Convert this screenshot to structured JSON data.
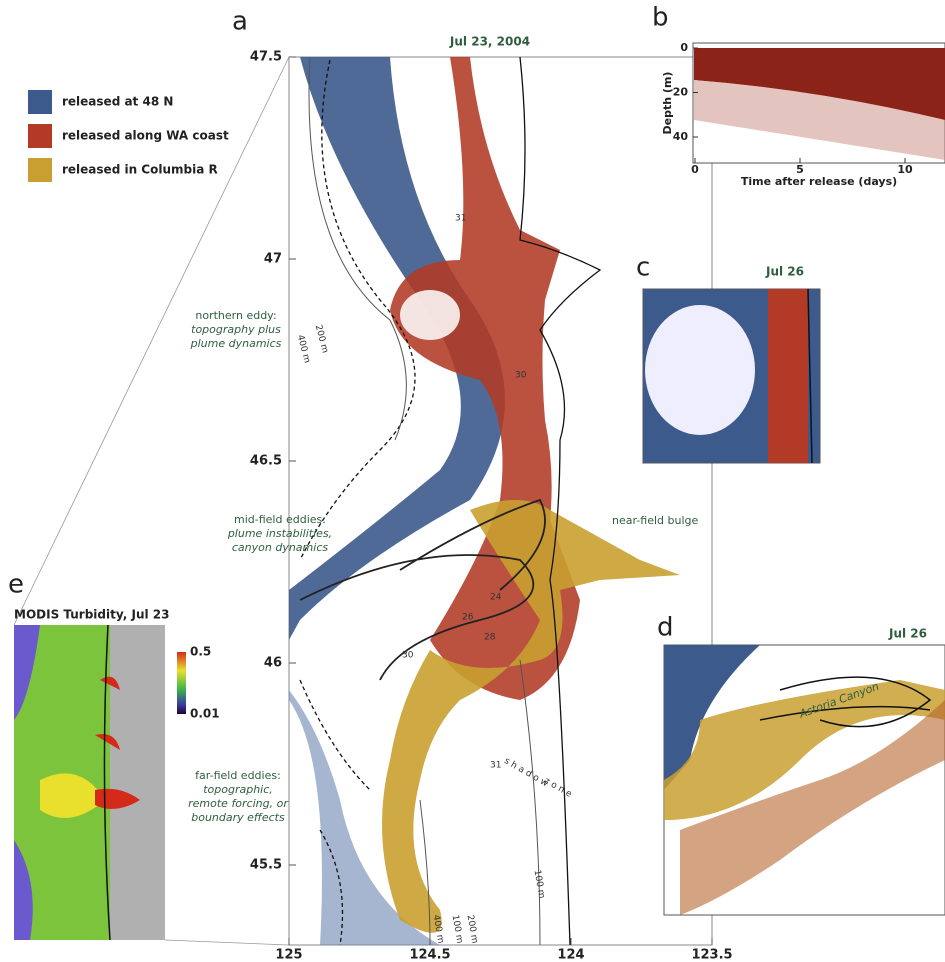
{
  "panels": {
    "a": {
      "label": "a",
      "title": "Jul 23, 2004",
      "lat_ticks": [
        "47.5",
        "47",
        "46.5",
        "46",
        "45.5"
      ],
      "lon_ticks": [
        "125",
        "124.5",
        "124",
        "123.5"
      ],
      "legend": [
        {
          "label": "released at 48 N",
          "color": "#3d5a8c"
        },
        {
          "label": "released along WA coast",
          "color": "#b23a26"
        },
        {
          "label": "released in Columbia R",
          "color": "#c9a030"
        }
      ],
      "annotations": [
        {
          "lines": [
            "northern eddy:",
            "topography plus",
            "plume dynamics"
          ]
        },
        {
          "lines": [
            "mid-field eddies:",
            "plume instabilities,",
            "canyon dynamics"
          ]
        },
        {
          "lines": [
            "near-field bulge"
          ]
        },
        {
          "lines": [
            "far-field eddies:",
            "topographic,",
            "remote forcing, or",
            "boundary effects"
          ]
        }
      ],
      "shadow_zone": [
        "s h a d o w",
        "z o n e"
      ],
      "contour_labels": [
        "31",
        "200 m",
        "400 m",
        "30",
        "24",
        "26",
        "28",
        "30",
        "31",
        "400 m",
        "100 m",
        "200 m",
        "100 m"
      ]
    },
    "b": {
      "label": "b",
      "xlabel": "Time after release (days)",
      "ylabel": "Depth (m)",
      "xticks": [
        0,
        5,
        10
      ],
      "yticks": [
        0,
        20,
        40
      ]
    },
    "c": {
      "label": "c",
      "title": "Jul 26"
    },
    "d": {
      "label": "d",
      "title": "Jul 26",
      "canyon": "Astoria Canyon"
    },
    "e": {
      "label": "e",
      "title": "MODIS Turbidity, Jul 23",
      "colorbar": [
        "0.5",
        "0.01"
      ]
    }
  }
}
